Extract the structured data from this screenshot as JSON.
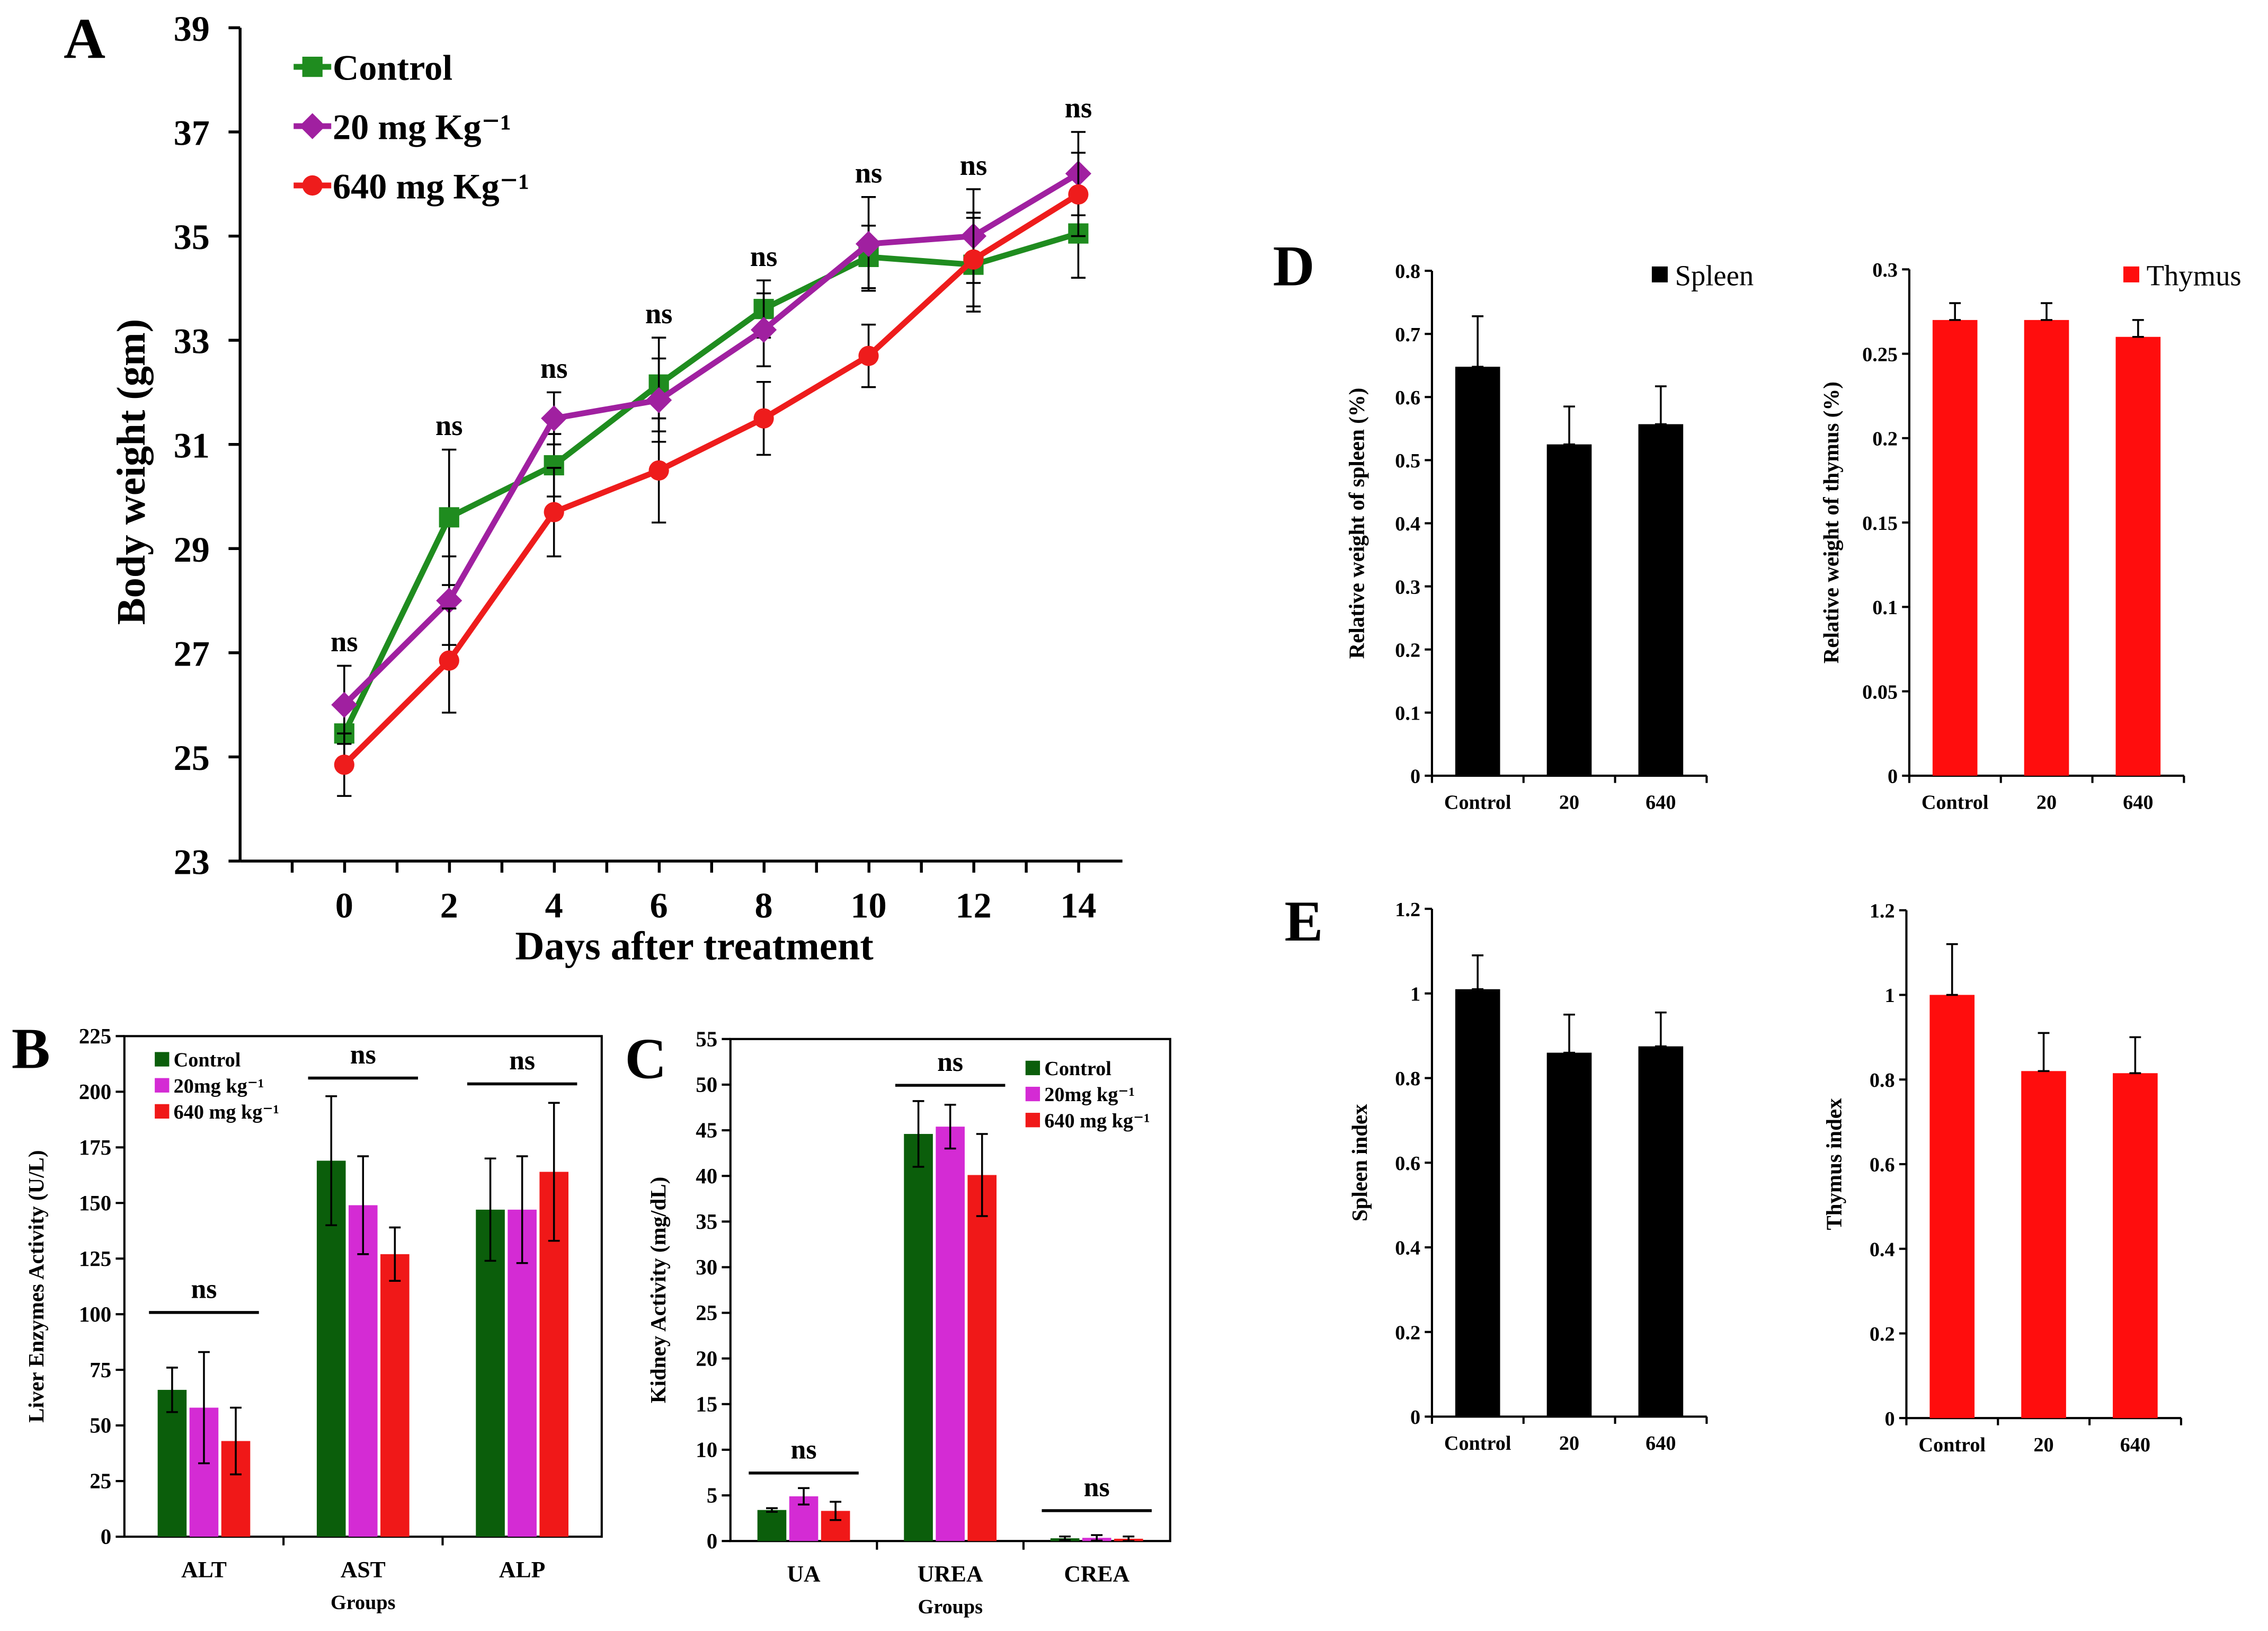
{
  "chart_data": [
    {
      "panel": "A",
      "type": "line",
      "xlabel": "Days after treatment",
      "ylabel": "Body weight (gm)",
      "x": [
        0,
        2,
        4,
        6,
        8,
        10,
        12,
        14
      ],
      "xticks": [
        "0",
        "2",
        "4",
        "6",
        "8",
        "10",
        "12",
        "14"
      ],
      "ylim": [
        23,
        39
      ],
      "yticks": [
        "23",
        "25",
        "27",
        "29",
        "31",
        "33",
        "35",
        "37",
        "39"
      ],
      "series": [
        {
          "name": "Control",
          "color": "#1f8c1f",
          "marker": "square",
          "values": [
            25.45,
            29.6,
            30.6,
            32.15,
            33.6,
            34.6,
            34.45,
            35.05
          ],
          "errors": [
            0.5,
            1.3,
            0.6,
            0.9,
            0.55,
            0.6,
            0.9,
            0.85
          ]
        },
        {
          "name": "20 mg Kg⁻¹",
          "color": "#a020a0",
          "marker": "diamond",
          "values": [
            26.0,
            28.0,
            31.5,
            31.85,
            33.2,
            34.85,
            35.0,
            36.2
          ],
          "errors": [
            0.75,
            0.85,
            0.5,
            0.8,
            0.7,
            0.9,
            0.9,
            0.8
          ]
        },
        {
          "name": "640 mg Kg⁻¹",
          "color": "#ee1c1c",
          "marker": "circle",
          "values": [
            24.85,
            26.85,
            29.7,
            30.5,
            31.5,
            32.7,
            34.55,
            35.8
          ],
          "errors": [
            0.6,
            1.0,
            0.85,
            1.0,
            0.7,
            0.6,
            0.9,
            0.8
          ]
        }
      ],
      "annotations": [
        "ns",
        "ns",
        "ns",
        "ns",
        "ns",
        "ns",
        "ns",
        "ns"
      ]
    },
    {
      "panel": "B",
      "type": "bar",
      "xlabel": "Groups",
      "ylabel": "Liver Enzymes Activity   (U/L)",
      "categories": [
        "ALT",
        "AST",
        "ALP"
      ],
      "ylim": [
        0,
        225
      ],
      "yticks": [
        "0",
        "25",
        "50",
        "75",
        "100",
        "125",
        "150",
        "175",
        "200",
        "225"
      ],
      "series": [
        {
          "name": "Control",
          "color": "#0b5e0b",
          "values": [
            66,
            169,
            147
          ],
          "errors": [
            10,
            29,
            23
          ]
        },
        {
          "name": "20mg kg⁻¹",
          "color": "#d42bd4",
          "values": [
            58,
            149,
            147
          ],
          "errors": [
            25,
            22,
            24
          ]
        },
        {
          "name": "640 mg kg⁻¹",
          "color": "#f01818",
          "values": [
            43,
            127,
            164
          ],
          "errors": [
            15,
            12,
            31
          ]
        }
      ],
      "annotations": [
        "ns",
        "ns",
        "ns"
      ]
    },
    {
      "panel": "C",
      "type": "bar",
      "xlabel": "Groups",
      "ylabel": "Kidney   Activity   (mg/dL)",
      "categories": [
        "UA",
        "UREA",
        "CREA"
      ],
      "ylim": [
        0,
        55
      ],
      "yticks": [
        "0",
        "5",
        "10",
        "15",
        "20",
        "25",
        "30",
        "35",
        "40",
        "45",
        "50",
        "55"
      ],
      "series": [
        {
          "name": "Control",
          "color": "#0b5e0b",
          "values": [
            3.4,
            44.6,
            0.3
          ],
          "errors": [
            0.2,
            3.6,
            0.2
          ]
        },
        {
          "name": "20mg kg⁻¹",
          "color": "#d42bd4",
          "values": [
            4.9,
            45.4,
            0.35
          ],
          "errors": [
            0.9,
            2.4,
            0.3
          ]
        },
        {
          "name": "640 mg kg⁻¹",
          "color": "#f01818",
          "values": [
            3.3,
            40.1,
            0.25
          ],
          "errors": [
            1.0,
            4.5,
            0.25
          ]
        }
      ],
      "annotations": [
        "ns",
        "ns",
        "ns"
      ]
    },
    {
      "panel": "D",
      "type": "bar",
      "legend": "Spleen",
      "color": "#000000",
      "ylabel": "Relative weight of spleen (%)",
      "categories": [
        "Control",
        "20",
        "640"
      ],
      "values": [
        0.648,
        0.525,
        0.557
      ],
      "errors": [
        0.08,
        0.06,
        0.06
      ],
      "ylim": [
        0,
        0.8
      ],
      "yticks": [
        "0",
        "0.1",
        "0.2",
        "0.3",
        "0.4",
        "0.5",
        "0.6",
        "0.7",
        "0.8"
      ]
    },
    {
      "panel": "D",
      "type": "bar",
      "legend": "Thymus",
      "color": "#ff0d0d",
      "ylabel": "Relative weight of thymus (%)",
      "categories": [
        "Control",
        "20",
        "640"
      ],
      "values": [
        0.27,
        0.27,
        0.26
      ],
      "errors": [
        0.01,
        0.01,
        0.01
      ],
      "ylim": [
        0,
        0.3
      ],
      "yticks": [
        "0",
        "0.05",
        "0.1",
        "0.15",
        "0.2",
        "0.25",
        "0.3"
      ]
    },
    {
      "panel": "E",
      "type": "bar",
      "color": "#000000",
      "ylabel": "Spleen index",
      "categories": [
        "Control",
        "20",
        "640"
      ],
      "values": [
        1.01,
        0.86,
        0.875
      ],
      "errors": [
        0.08,
        0.09,
        0.08
      ],
      "ylim": [
        0,
        1.2
      ],
      "yticks": [
        "0",
        "0.2",
        "0.4",
        "0.6",
        "0.8",
        "1",
        "1.2"
      ]
    },
    {
      "panel": "E",
      "type": "bar",
      "color": "#ff0d0d",
      "ylabel": "Thymus index",
      "categories": [
        "Control",
        "20",
        "640"
      ],
      "values": [
        1.0,
        0.82,
        0.815
      ],
      "errors": [
        0.12,
        0.09,
        0.085
      ],
      "ylim": [
        0,
        1.2
      ],
      "yticks": [
        "0",
        "0.2",
        "0.4",
        "0.6",
        "0.8",
        "1",
        "1.2"
      ]
    }
  ]
}
